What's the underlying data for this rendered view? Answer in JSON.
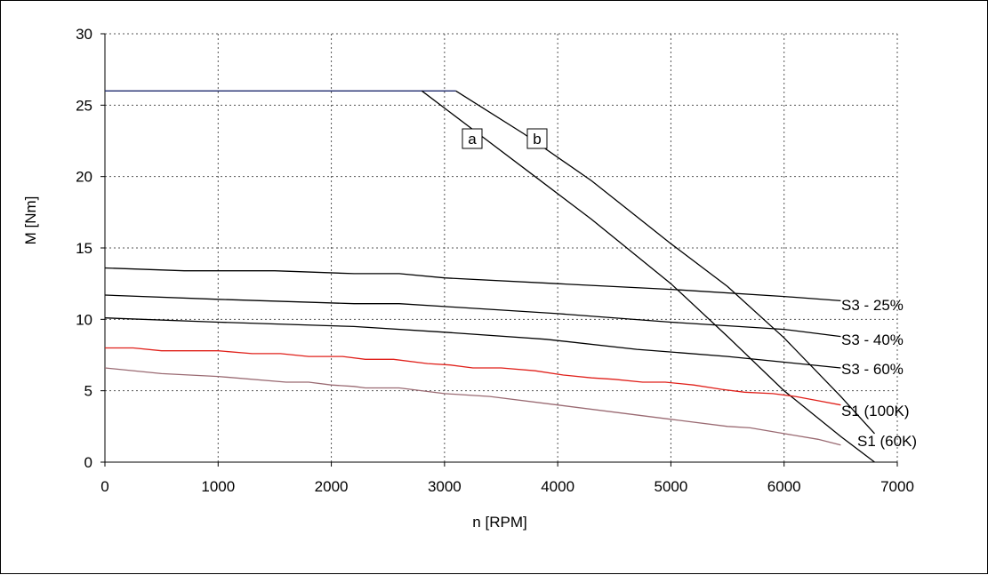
{
  "chart_data": {
    "type": "line",
    "xlabel": "n [RPM]",
    "ylabel": "M [Nm]",
    "xlim": [
      0,
      7000
    ],
    "ylim": [
      0,
      30
    ],
    "xticks": [
      0,
      1000,
      2000,
      3000,
      4000,
      5000,
      6000,
      7000
    ],
    "yticks": [
      0,
      5,
      10,
      15,
      20,
      25,
      30
    ],
    "grid": true,
    "colors": {
      "black": "#000000",
      "navy": "#1f2a6e",
      "red": "#e0201a",
      "mauve": "#9a6a72"
    },
    "series": [
      {
        "name": "S3 - 25%",
        "color": "#000000",
        "points": [
          [
            0,
            13.6
          ],
          [
            700,
            13.4
          ],
          [
            1500,
            13.4
          ],
          [
            2200,
            13.2
          ],
          [
            2600,
            13.2
          ],
          [
            3000,
            12.9
          ],
          [
            4000,
            12.5
          ],
          [
            5000,
            12.1
          ],
          [
            6000,
            11.6
          ],
          [
            6500,
            11.3
          ]
        ]
      },
      {
        "name": "S3 - 40%",
        "color": "#000000",
        "points": [
          [
            0,
            11.7
          ],
          [
            1000,
            11.4
          ],
          [
            2200,
            11.1
          ],
          [
            2600,
            11.1
          ],
          [
            3000,
            10.9
          ],
          [
            4000,
            10.4
          ],
          [
            5000,
            9.8
          ],
          [
            6000,
            9.3
          ],
          [
            6500,
            8.8
          ]
        ]
      },
      {
        "name": "S3 - 60%",
        "color": "#000000",
        "points": [
          [
            0,
            10.1
          ],
          [
            1000,
            9.8
          ],
          [
            2200,
            9.5
          ],
          [
            3000,
            9.1
          ],
          [
            3900,
            8.6
          ],
          [
            4700,
            7.9
          ],
          [
            5500,
            7.4
          ],
          [
            6000,
            7.0
          ],
          [
            6500,
            6.6
          ]
        ]
      },
      {
        "name": "S1 (100K)",
        "color": "#e0201a",
        "points": [
          [
            0,
            8.0
          ],
          [
            250,
            8.0
          ],
          [
            500,
            7.8
          ],
          [
            1000,
            7.8
          ],
          [
            1300,
            7.6
          ],
          [
            1550,
            7.6
          ],
          [
            1800,
            7.4
          ],
          [
            2100,
            7.4
          ],
          [
            2300,
            7.2
          ],
          [
            2550,
            7.2
          ],
          [
            2850,
            6.9
          ],
          [
            3050,
            6.8
          ],
          [
            3250,
            6.6
          ],
          [
            3500,
            6.6
          ],
          [
            3800,
            6.4
          ],
          [
            4050,
            6.1
          ],
          [
            4300,
            5.9
          ],
          [
            4500,
            5.8
          ],
          [
            4750,
            5.6
          ],
          [
            4950,
            5.6
          ],
          [
            5200,
            5.4
          ],
          [
            5450,
            5.1
          ],
          [
            5650,
            4.9
          ],
          [
            5900,
            4.8
          ],
          [
            6100,
            4.6
          ],
          [
            6300,
            4.3
          ],
          [
            6500,
            4.0
          ]
        ]
      },
      {
        "name": "S1 (60K)",
        "color": "#9a6a72",
        "points": [
          [
            0,
            6.6
          ],
          [
            500,
            6.2
          ],
          [
            1000,
            6.0
          ],
          [
            1600,
            5.6
          ],
          [
            1800,
            5.6
          ],
          [
            2000,
            5.4
          ],
          [
            2200,
            5.3
          ],
          [
            2300,
            5.2
          ],
          [
            2600,
            5.2
          ],
          [
            3000,
            4.8
          ],
          [
            3200,
            4.7
          ],
          [
            3400,
            4.6
          ],
          [
            4000,
            4.0
          ],
          [
            5000,
            3.0
          ],
          [
            5500,
            2.5
          ],
          [
            5700,
            2.4
          ],
          [
            6000,
            2.0
          ],
          [
            6300,
            1.6
          ],
          [
            6500,
            1.2
          ]
        ]
      }
    ],
    "limit_curves": [
      {
        "name": "a",
        "color": "#000000",
        "points": [
          [
            2800,
            26.0
          ],
          [
            3300,
            23.0
          ],
          [
            3800,
            20.0
          ],
          [
            4300,
            17.0
          ],
          [
            5000,
            12.5
          ],
          [
            5500,
            8.8
          ],
          [
            6000,
            5.0
          ],
          [
            6500,
            1.8
          ],
          [
            6800,
            0.0
          ]
        ]
      },
      {
        "name": "b",
        "color": "#000000",
        "points": [
          [
            3100,
            26.0
          ],
          [
            3700,
            23.0
          ],
          [
            4300,
            19.7
          ],
          [
            5000,
            15.3
          ],
          [
            5500,
            12.3
          ],
          [
            6000,
            8.7
          ],
          [
            6500,
            4.6
          ],
          [
            6800,
            2.0
          ]
        ]
      }
    ],
    "rated_torque_line": {
      "color": "#1f2a6e",
      "points": [
        [
          0,
          26.0
        ],
        [
          3100,
          26.0
        ]
      ]
    },
    "series_labels": [
      "S3 - 25%",
      "S3 - 40%",
      "S3 - 60%",
      "S1 (100K)",
      "S1 (60K)"
    ],
    "curve_labels": [
      "a",
      "b"
    ]
  }
}
